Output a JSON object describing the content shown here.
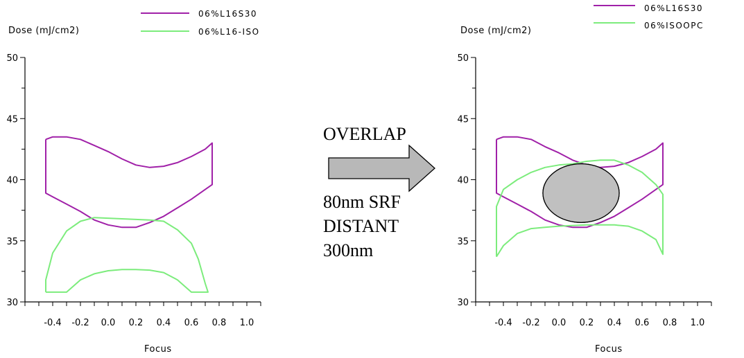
{
  "chart_data": [
    {
      "type": "line",
      "ylabel": "Dose (mJ/cm2)",
      "xlabel": "Focus",
      "xlim": [
        -0.6,
        1.1
      ],
      "ylim": [
        30,
        50
      ],
      "xticks": [
        "-0.4",
        "-0.2",
        "0.0",
        "0.2",
        "0.4",
        "0.6",
        "0.8",
        "1.0"
      ],
      "yticks": [
        "30",
        "35",
        "40",
        "45",
        "50"
      ],
      "legend_position": "top",
      "series": [
        {
          "name": "06%L16S30",
          "color": "#a020a8",
          "points": [
            [
              -0.45,
              43.3
            ],
            [
              -0.4,
              43.5
            ],
            [
              -0.3,
              43.5
            ],
            [
              -0.2,
              43.3
            ],
            [
              -0.1,
              42.8
            ],
            [
              0.0,
              42.3
            ],
            [
              0.1,
              41.7
            ],
            [
              0.2,
              41.2
            ],
            [
              0.3,
              41.0
            ],
            [
              0.4,
              41.1
            ],
            [
              0.5,
              41.4
            ],
            [
              0.6,
              41.9
            ],
            [
              0.7,
              42.5
            ],
            [
              0.75,
              43.0
            ],
            [
              0.75,
              39.6
            ],
            [
              0.7,
              39.2
            ],
            [
              0.6,
              38.4
            ],
            [
              0.5,
              37.7
            ],
            [
              0.4,
              37.0
            ],
            [
              0.3,
              36.5
            ],
            [
              0.2,
              36.1
            ],
            [
              0.1,
              36.1
            ],
            [
              0.0,
              36.3
            ],
            [
              -0.1,
              36.7
            ],
            [
              -0.2,
              37.4
            ],
            [
              -0.3,
              38.0
            ],
            [
              -0.4,
              38.6
            ],
            [
              -0.45,
              38.9
            ],
            [
              -0.45,
              43.3
            ]
          ]
        },
        {
          "name": "06%L16-ISO",
          "color": "#7cec7c",
          "points": [
            [
              -0.45,
              30.8
            ],
            [
              -0.3,
              30.8
            ],
            [
              -0.2,
              31.8
            ],
            [
              -0.1,
              32.3
            ],
            [
              0.0,
              32.55
            ],
            [
              0.1,
              32.65
            ],
            [
              0.2,
              32.65
            ],
            [
              0.3,
              32.6
            ],
            [
              0.4,
              32.4
            ],
            [
              0.5,
              31.8
            ],
            [
              0.6,
              30.8
            ],
            [
              0.72,
              30.8
            ],
            [
              0.7,
              31.5
            ],
            [
              0.65,
              33.5
            ],
            [
              0.6,
              34.8
            ],
            [
              0.5,
              35.9
            ],
            [
              0.4,
              36.6
            ],
            [
              0.3,
              36.7
            ],
            [
              0.2,
              36.75
            ],
            [
              0.1,
              36.8
            ],
            [
              0.0,
              36.85
            ],
            [
              -0.1,
              36.9
            ],
            [
              -0.2,
              36.6
            ],
            [
              -0.3,
              35.8
            ],
            [
              -0.4,
              34.0
            ],
            [
              -0.45,
              31.8
            ],
            [
              -0.45,
              30.8
            ]
          ]
        }
      ]
    },
    {
      "type": "line",
      "ylabel": "Dose (mJ/cm2)",
      "xlabel": "Focus",
      "xlim": [
        -0.6,
        1.1
      ],
      "ylim": [
        30,
        50
      ],
      "xticks": [
        "-0.4",
        "-0.2",
        "0.0",
        "0.2",
        "0.4",
        "0.6",
        "0.8",
        "1.0"
      ],
      "yticks": [
        "30",
        "35",
        "40",
        "45",
        "50"
      ],
      "legend_position": "top",
      "series": [
        {
          "name": "06%L16S30",
          "color": "#a020a8",
          "points": [
            [
              -0.45,
              43.3
            ],
            [
              -0.4,
              43.5
            ],
            [
              -0.3,
              43.5
            ],
            [
              -0.2,
              43.3
            ],
            [
              -0.1,
              42.7
            ],
            [
              0.0,
              42.2
            ],
            [
              0.1,
              41.6
            ],
            [
              0.2,
              41.2
            ],
            [
              0.3,
              41.0
            ],
            [
              0.4,
              41.1
            ],
            [
              0.5,
              41.4
            ],
            [
              0.6,
              41.9
            ],
            [
              0.7,
              42.5
            ],
            [
              0.75,
              43.0
            ],
            [
              0.75,
              39.6
            ],
            [
              0.7,
              39.2
            ],
            [
              0.6,
              38.4
            ],
            [
              0.5,
              37.7
            ],
            [
              0.4,
              37.0
            ],
            [
              0.3,
              36.5
            ],
            [
              0.2,
              36.1
            ],
            [
              0.1,
              36.1
            ],
            [
              0.0,
              36.3
            ],
            [
              -0.1,
              36.7
            ],
            [
              -0.2,
              37.4
            ],
            [
              -0.3,
              38.0
            ],
            [
              -0.4,
              38.6
            ],
            [
              -0.45,
              38.9
            ],
            [
              -0.45,
              43.3
            ]
          ]
        },
        {
          "name": "06%ISOOPC",
          "color": "#7cec7c",
          "points": [
            [
              -0.45,
              33.7
            ],
            [
              -0.4,
              34.6
            ],
            [
              -0.3,
              35.6
            ],
            [
              -0.2,
              36.0
            ],
            [
              -0.1,
              36.1
            ],
            [
              0.0,
              36.2
            ],
            [
              0.2,
              36.3
            ],
            [
              0.4,
              36.3
            ],
            [
              0.5,
              36.2
            ],
            [
              0.6,
              35.8
            ],
            [
              0.7,
              35.1
            ],
            [
              0.75,
              33.9
            ],
            [
              0.75,
              38.8
            ],
            [
              0.7,
              39.6
            ],
            [
              0.6,
              40.6
            ],
            [
              0.5,
              41.2
            ],
            [
              0.4,
              41.6
            ],
            [
              0.3,
              41.6
            ],
            [
              0.2,
              41.5
            ],
            [
              0.1,
              41.3
            ],
            [
              0.0,
              41.2
            ],
            [
              -0.1,
              41.0
            ],
            [
              -0.2,
              40.6
            ],
            [
              -0.3,
              40.0
            ],
            [
              -0.4,
              39.2
            ],
            [
              -0.45,
              37.8
            ],
            [
              -0.45,
              33.7
            ]
          ]
        }
      ],
      "overlap_region": {
        "center": [
          0.16,
          38.9
        ],
        "half_width": 0.275,
        "half_height": 2.4,
        "fill": "#c0c0c0"
      }
    }
  ],
  "annotation": {
    "title": "OVERLAP",
    "lines": [
      "80nm SRF",
      "DISTANT",
      "300nm"
    ],
    "arrow_fill": "#b8b8b8"
  }
}
